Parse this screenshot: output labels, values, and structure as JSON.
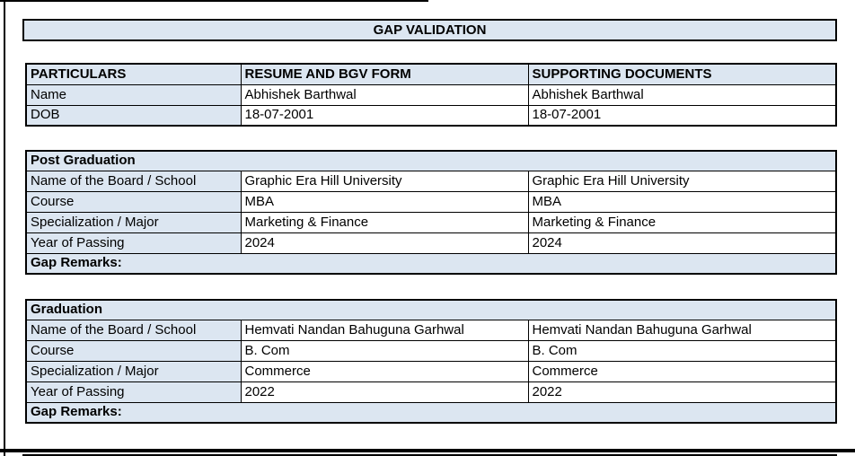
{
  "page": {
    "title": "GAP VALIDATION"
  },
  "colors": {
    "section_fill": "#dce6f1",
    "border": "#000000",
    "background": "#ffffff"
  },
  "particulars": {
    "headers": [
      "PARTICULARS",
      "RESUME AND BGV FORM",
      "SUPPORTING DOCUMENTS"
    ],
    "rows": [
      {
        "label": "Name",
        "resume": "Abhishek Barthwal",
        "supporting": "Abhishek Barthwal"
      },
      {
        "label": "DOB",
        "resume": "18-07-2001",
        "supporting": "18-07-2001"
      }
    ]
  },
  "sections": [
    {
      "title": "Post Graduation",
      "rows": [
        {
          "label": "Name of the Board / School",
          "resume": "Graphic Era Hill University",
          "supporting": "Graphic Era Hill University"
        },
        {
          "label": "Course",
          "resume": "MBA",
          "supporting": "MBA"
        },
        {
          "label": "Specialization / Major",
          "resume": "Marketing & Finance",
          "supporting": "Marketing & Finance"
        },
        {
          "label": "Year of Passing",
          "resume": "2024",
          "supporting": "2024"
        }
      ],
      "gap_remarks_label": "Gap Remarks:",
      "gap_remarks_value": ""
    },
    {
      "title": "Graduation",
      "rows": [
        {
          "label": "Name of the Board / School",
          "resume": "Hemvati Nandan Bahuguna Garhwal",
          "supporting": "Hemvati Nandan Bahuguna Garhwal"
        },
        {
          "label": "Course",
          "resume": "B. Com",
          "supporting": "B. Com"
        },
        {
          "label": "Specialization / Major",
          "resume": "Commerce",
          "supporting": "Commerce"
        },
        {
          "label": "Year of Passing",
          "resume": "2022",
          "supporting": "2022"
        }
      ],
      "gap_remarks_label": "Gap Remarks:",
      "gap_remarks_value": ""
    }
  ]
}
